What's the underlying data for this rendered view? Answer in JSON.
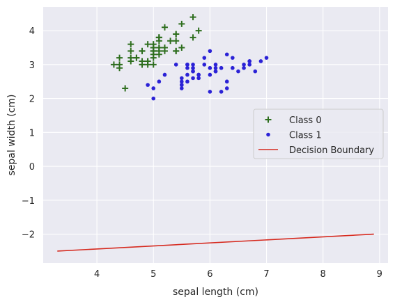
{
  "chart_data": {
    "type": "scatter",
    "title": "",
    "xlabel": "sepal length (cm)",
    "ylabel": "sepal width (cm)",
    "xlim": [
      3.05,
      9.15
    ],
    "ylim": [
      -2.85,
      4.7
    ],
    "x_ticks": [
      4,
      5,
      6,
      7,
      8,
      9
    ],
    "y_ticks": [
      -2,
      -1,
      0,
      1,
      2,
      3,
      4
    ],
    "x_tick_labels": [
      "4",
      "5",
      "6",
      "7",
      "8",
      "9"
    ],
    "y_tick_labels": [
      "−2",
      "−1",
      "0",
      "1",
      "2",
      "3",
      "4"
    ],
    "grid": true,
    "legend_position": "center-right",
    "series": [
      {
        "name": "Class 0",
        "marker": "plus",
        "color": "#2e6e1e",
        "points": [
          [
            5.1,
            3.5
          ],
          [
            4.9,
            3.0
          ],
          [
            4.7,
            3.2
          ],
          [
            4.6,
            3.1
          ],
          [
            5.0,
            3.6
          ],
          [
            5.4,
            3.9
          ],
          [
            4.6,
            3.4
          ],
          [
            5.0,
            3.4
          ],
          [
            4.4,
            2.9
          ],
          [
            4.9,
            3.1
          ],
          [
            5.4,
            3.7
          ],
          [
            4.8,
            3.4
          ],
          [
            4.8,
            3.0
          ],
          [
            4.3,
            3.0
          ],
          [
            5.8,
            4.0
          ],
          [
            5.7,
            4.4
          ],
          [
            5.4,
            3.9
          ],
          [
            5.1,
            3.5
          ],
          [
            5.7,
            3.8
          ],
          [
            5.1,
            3.8
          ],
          [
            5.4,
            3.4
          ],
          [
            5.1,
            3.7
          ],
          [
            4.6,
            3.6
          ],
          [
            5.1,
            3.3
          ],
          [
            4.8,
            3.4
          ],
          [
            5.0,
            3.0
          ],
          [
            5.0,
            3.4
          ],
          [
            5.2,
            3.5
          ],
          [
            5.2,
            3.4
          ],
          [
            4.7,
            3.2
          ],
          [
            4.8,
            3.1
          ],
          [
            5.4,
            3.4
          ],
          [
            5.2,
            4.1
          ],
          [
            5.5,
            4.2
          ],
          [
            4.9,
            3.1
          ],
          [
            5.0,
            3.2
          ],
          [
            5.5,
            3.5
          ],
          [
            4.9,
            3.6
          ],
          [
            4.4,
            3.0
          ],
          [
            5.1,
            3.4
          ],
          [
            5.0,
            3.5
          ],
          [
            4.5,
            2.3
          ],
          [
            4.4,
            3.2
          ],
          [
            5.0,
            3.5
          ],
          [
            5.1,
            3.8
          ],
          [
            4.8,
            3.0
          ],
          [
            5.1,
            3.8
          ],
          [
            4.6,
            3.2
          ],
          [
            5.3,
            3.7
          ],
          [
            5.0,
            3.3
          ]
        ]
      },
      {
        "name": "Class 1",
        "marker": "circle",
        "color": "#2b22d6",
        "points": [
          [
            7.0,
            3.2
          ],
          [
            6.4,
            3.2
          ],
          [
            6.9,
            3.1
          ],
          [
            5.5,
            2.3
          ],
          [
            6.5,
            2.8
          ],
          [
            5.7,
            2.8
          ],
          [
            6.3,
            3.3
          ],
          [
            4.9,
            2.4
          ],
          [
            6.6,
            2.9
          ],
          [
            5.2,
            2.7
          ],
          [
            5.0,
            2.0
          ],
          [
            5.9,
            3.0
          ],
          [
            6.0,
            2.2
          ],
          [
            6.1,
            2.9
          ],
          [
            5.6,
            2.9
          ],
          [
            6.7,
            3.1
          ],
          [
            5.6,
            3.0
          ],
          [
            5.8,
            2.7
          ],
          [
            6.2,
            2.2
          ],
          [
            5.6,
            2.5
          ],
          [
            5.9,
            3.2
          ],
          [
            6.1,
            2.8
          ],
          [
            6.3,
            2.5
          ],
          [
            6.1,
            2.8
          ],
          [
            6.4,
            2.9
          ],
          [
            6.6,
            3.0
          ],
          [
            6.8,
            2.8
          ],
          [
            6.7,
            3.0
          ],
          [
            6.0,
            2.9
          ],
          [
            5.7,
            2.6
          ],
          [
            5.5,
            2.4
          ],
          [
            5.5,
            2.4
          ],
          [
            5.8,
            2.7
          ],
          [
            6.0,
            2.7
          ],
          [
            5.4,
            3.0
          ],
          [
            6.0,
            3.4
          ],
          [
            6.7,
            3.1
          ],
          [
            6.3,
            2.3
          ],
          [
            5.6,
            3.0
          ],
          [
            5.5,
            2.5
          ],
          [
            5.5,
            2.6
          ],
          [
            6.1,
            3.0
          ],
          [
            5.8,
            2.6
          ],
          [
            5.0,
            2.3
          ],
          [
            5.6,
            2.7
          ],
          [
            5.7,
            3.0
          ],
          [
            5.7,
            2.9
          ],
          [
            6.2,
            2.9
          ],
          [
            5.1,
            2.5
          ],
          [
            5.7,
            2.8
          ]
        ]
      }
    ],
    "decision_boundary": {
      "name": "Decision Boundary",
      "color": "#d62a1f",
      "points": [
        [
          3.3,
          -2.5
        ],
        [
          8.9,
          -2.0
        ]
      ]
    }
  }
}
